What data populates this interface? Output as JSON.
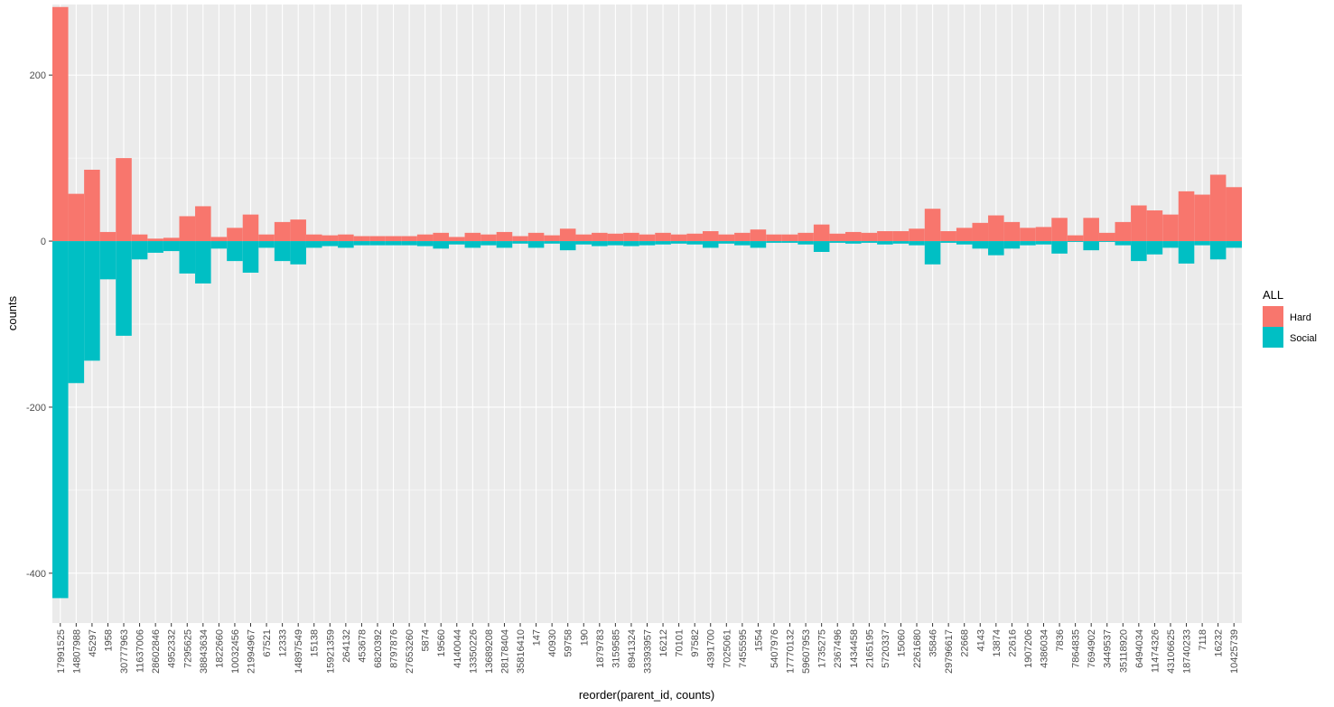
{
  "chart_data": {
    "type": "bar",
    "stacked": true,
    "diverging": true,
    "xlabel": "reorder(parent_id, counts)",
    "ylabel": "counts",
    "ylim": [
      -460,
      285
    ],
    "yticks": [
      -400,
      -200,
      0,
      200
    ],
    "ytick_labels": [
      "-400",
      "-200",
      "0",
      "200"
    ],
    "grid": true,
    "legend": {
      "title": "ALL",
      "position": "right",
      "entries": [
        "Hard",
        "Social"
      ]
    },
    "colors": {
      "Hard": "#F8766D",
      "Social": "#00BFC4",
      "panel": "#EBEBEB",
      "grid": "#FFFFFF",
      "tick_text": "#4D4D4D"
    },
    "categories": [
      "17991525",
      "14807988",
      "45297",
      "1958",
      "30777963",
      "11637006",
      "28602846",
      "4952332",
      "7295625",
      "38843634",
      "1822660",
      "10032456",
      "21994967",
      "67521",
      "12333",
      "14897549",
      "15138",
      "15921359",
      "264132",
      "453678",
      "6820392",
      "8797876",
      "27653260",
      "5874",
      "19560",
      "4140044",
      "13350226",
      "13689208",
      "28178404",
      "35816410",
      "147",
      "40930",
      "59758",
      "190",
      "1879783",
      "3159585",
      "8941324",
      "33393957",
      "16212",
      "70101",
      "97582",
      "4391700",
      "7025061",
      "7455595",
      "1554",
      "5407976",
      "17770132",
      "59607953",
      "1735275",
      "2367496",
      "1434458",
      "2165195",
      "5720337",
      "15060",
      "2261680",
      "35846",
      "29796617",
      "22668",
      "4143",
      "13874",
      "22616",
      "1907206",
      "4386034",
      "7836",
      "7864835",
      "7694902",
      "3449537",
      "35118920",
      "6494034",
      "11474326",
      "43106625",
      "18740233",
      "7118",
      "16232",
      "10425739"
    ],
    "series": [
      {
        "name": "Hard",
        "values": [
          282,
          57,
          86,
          11,
          100,
          8,
          3,
          4,
          30,
          42,
          5,
          16,
          32,
          8,
          23,
          26,
          8,
          7,
          8,
          6,
          6,
          6,
          6,
          8,
          10,
          5,
          10,
          8,
          11,
          6,
          10,
          7,
          15,
          8,
          10,
          9,
          10,
          8,
          10,
          8,
          9,
          12,
          8,
          10,
          14,
          8,
          8,
          10,
          20,
          9,
          11,
          10,
          12,
          12,
          15,
          39,
          12,
          16,
          22,
          31,
          23,
          16,
          17,
          28,
          7,
          28,
          10,
          23,
          43,
          37,
          32,
          60,
          56,
          80,
          65
        ]
      },
      {
        "name": "Social",
        "values": [
          -430,
          -171,
          -144,
          -46,
          -114,
          -22,
          -14,
          -12,
          -39,
          -51,
          -9,
          -24,
          -38,
          -8,
          -24,
          -28,
          -8,
          -6,
          -8,
          -5,
          -5,
          -5,
          -5,
          -6,
          -9,
          -4,
          -8,
          -5,
          -8,
          -3,
          -8,
          -3,
          -11,
          -4,
          -6,
          -5,
          -6,
          -5,
          -4,
          -3,
          -4,
          -8,
          -3,
          -5,
          -8,
          -2,
          -2,
          -4,
          -13,
          -2,
          -3,
          -2,
          -4,
          -3,
          -5,
          -28,
          -2,
          -4,
          -9,
          -17,
          -9,
          -5,
          -4,
          -15,
          -1,
          -11,
          -1,
          -5,
          -24,
          -16,
          -8,
          -27,
          -5,
          -22,
          -8
        ]
      }
    ]
  }
}
